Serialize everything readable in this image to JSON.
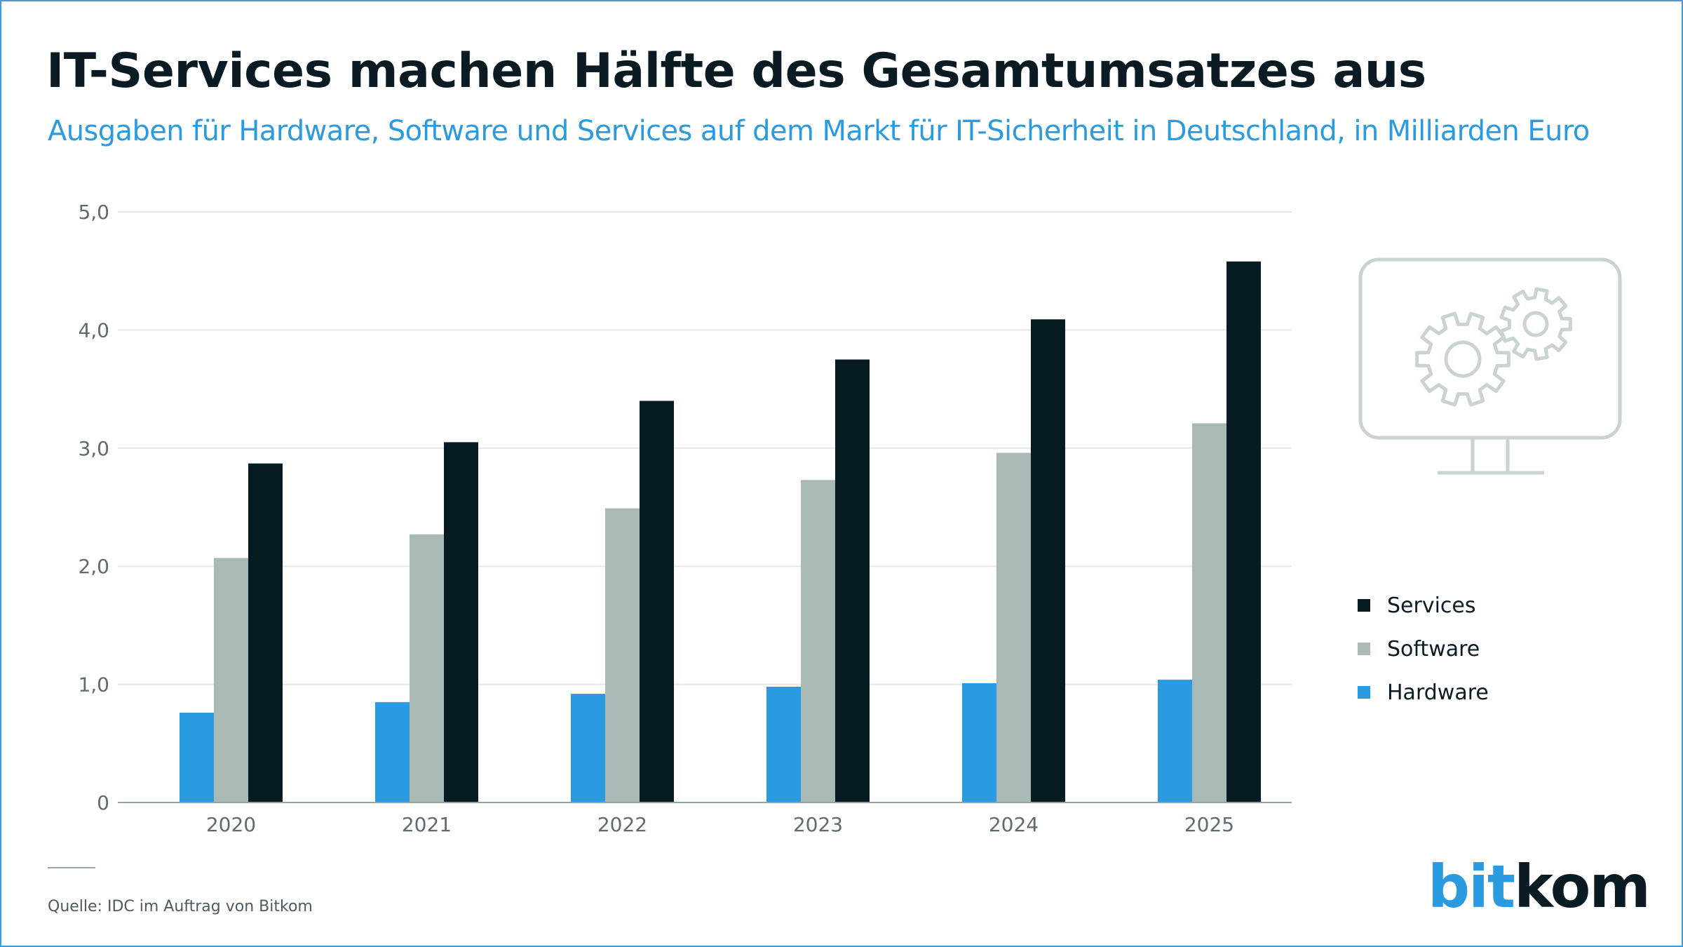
{
  "header": {
    "title": "IT-Services machen Hälfte des Gesamtumsatzes aus",
    "subtitle": "Ausgaben für Hardware, Software und Services auf dem Markt für IT-Sicherheit in Deutschland, in Milliarden Euro"
  },
  "footer": {
    "source": "Quelle: IDC im Auftrag von Bitkom",
    "logo_bit": "bit",
    "logo_kom": "kom"
  },
  "icons": {
    "illustration": "monitor-with-gears-icon"
  },
  "colors": {
    "hardware": "#2a9be0",
    "software": "#a9b9b6",
    "services": "#071b23",
    "accent": "#2a9be0"
  },
  "legend": [
    {
      "name": "Services",
      "color": "#071b23"
    },
    {
      "name": "Software",
      "color": "#a9b9b6"
    },
    {
      "name": "Hardware",
      "color": "#2a9be0"
    }
  ],
  "chart_data": {
    "type": "bar",
    "title": "IT-Services machen Hälfte des Gesamtumsatzes aus",
    "subtitle": "Ausgaben für Hardware, Software und Services auf dem Markt für IT-Sicherheit in Deutschland, in Milliarden Euro",
    "xlabel": "",
    "ylabel": "",
    "categories": [
      "2020",
      "2021",
      "2022",
      "2023",
      "2024",
      "2025"
    ],
    "series": [
      {
        "name": "Hardware",
        "values": [
          0.76,
          0.85,
          0.92,
          0.98,
          1.01,
          1.04
        ]
      },
      {
        "name": "Software",
        "values": [
          2.07,
          2.27,
          2.49,
          2.73,
          2.96,
          3.21
        ]
      },
      {
        "name": "Services",
        "values": [
          2.87,
          3.05,
          3.4,
          3.75,
          4.09,
          4.58
        ]
      }
    ],
    "ylim": [
      0,
      5
    ],
    "yticks": [
      0,
      1,
      2,
      3,
      4,
      5
    ],
    "ytick_labels": [
      "0",
      "1,0",
      "2,0",
      "3,0",
      "4,0",
      "5,0"
    ],
    "grid": true,
    "legend_position": "right"
  }
}
